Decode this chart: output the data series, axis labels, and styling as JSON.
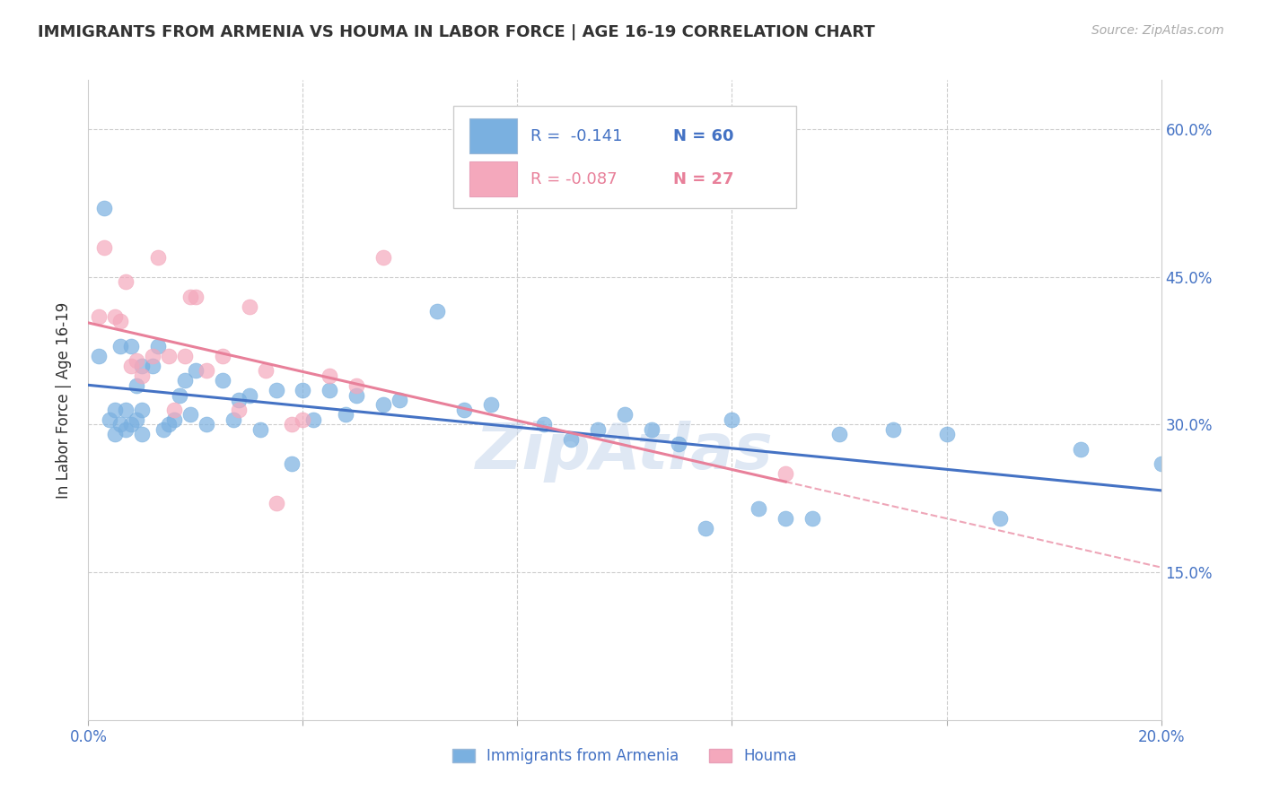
{
  "title": "IMMIGRANTS FROM ARMENIA VS HOUMA IN LABOR FORCE | AGE 16-19 CORRELATION CHART",
  "source": "Source: ZipAtlas.com",
  "ylabel": "In Labor Force | Age 16-19",
  "xlim": [
    0.0,
    0.2
  ],
  "ylim": [
    0.0,
    0.65
  ],
  "blue_color": "#7ab0e0",
  "pink_color": "#f4a8bc",
  "blue_line_color": "#4472c4",
  "pink_line_color": "#e8809a",
  "legend_label1": "Immigrants from Armenia",
  "legend_label2": "Houma",
  "blue_x": [
    0.002,
    0.003,
    0.004,
    0.005,
    0.005,
    0.006,
    0.006,
    0.007,
    0.007,
    0.008,
    0.008,
    0.009,
    0.009,
    0.01,
    0.01,
    0.01,
    0.012,
    0.013,
    0.014,
    0.015,
    0.016,
    0.017,
    0.018,
    0.019,
    0.02,
    0.022,
    0.025,
    0.027,
    0.028,
    0.03,
    0.032,
    0.035,
    0.038,
    0.04,
    0.042,
    0.045,
    0.048,
    0.05,
    0.055,
    0.058,
    0.065,
    0.07,
    0.075,
    0.085,
    0.09,
    0.095,
    0.1,
    0.105,
    0.11,
    0.115,
    0.12,
    0.125,
    0.13,
    0.135,
    0.14,
    0.15,
    0.16,
    0.17,
    0.185,
    0.2
  ],
  "blue_y": [
    0.37,
    0.52,
    0.305,
    0.315,
    0.29,
    0.38,
    0.3,
    0.315,
    0.295,
    0.38,
    0.3,
    0.34,
    0.305,
    0.36,
    0.315,
    0.29,
    0.36,
    0.38,
    0.295,
    0.3,
    0.305,
    0.33,
    0.345,
    0.31,
    0.355,
    0.3,
    0.345,
    0.305,
    0.325,
    0.33,
    0.295,
    0.335,
    0.26,
    0.335,
    0.305,
    0.335,
    0.31,
    0.33,
    0.32,
    0.325,
    0.415,
    0.315,
    0.32,
    0.3,
    0.285,
    0.295,
    0.31,
    0.295,
    0.28,
    0.195,
    0.305,
    0.215,
    0.205,
    0.205,
    0.29,
    0.295,
    0.29,
    0.205,
    0.275,
    0.26
  ],
  "pink_x": [
    0.002,
    0.003,
    0.005,
    0.006,
    0.007,
    0.008,
    0.009,
    0.01,
    0.012,
    0.013,
    0.015,
    0.016,
    0.018,
    0.019,
    0.02,
    0.022,
    0.025,
    0.028,
    0.03,
    0.033,
    0.035,
    0.038,
    0.04,
    0.045,
    0.05,
    0.055,
    0.13
  ],
  "pink_y": [
    0.41,
    0.48,
    0.41,
    0.405,
    0.445,
    0.36,
    0.365,
    0.35,
    0.37,
    0.47,
    0.37,
    0.315,
    0.37,
    0.43,
    0.43,
    0.355,
    0.37,
    0.315,
    0.42,
    0.355,
    0.22,
    0.3,
    0.305,
    0.35,
    0.34,
    0.47,
    0.25
  ],
  "watermark": "ZipAtlas",
  "grid_color": "#cccccc",
  "background_color": "#ffffff",
  "title_color": "#333333",
  "axis_label_color": "#4472c4"
}
